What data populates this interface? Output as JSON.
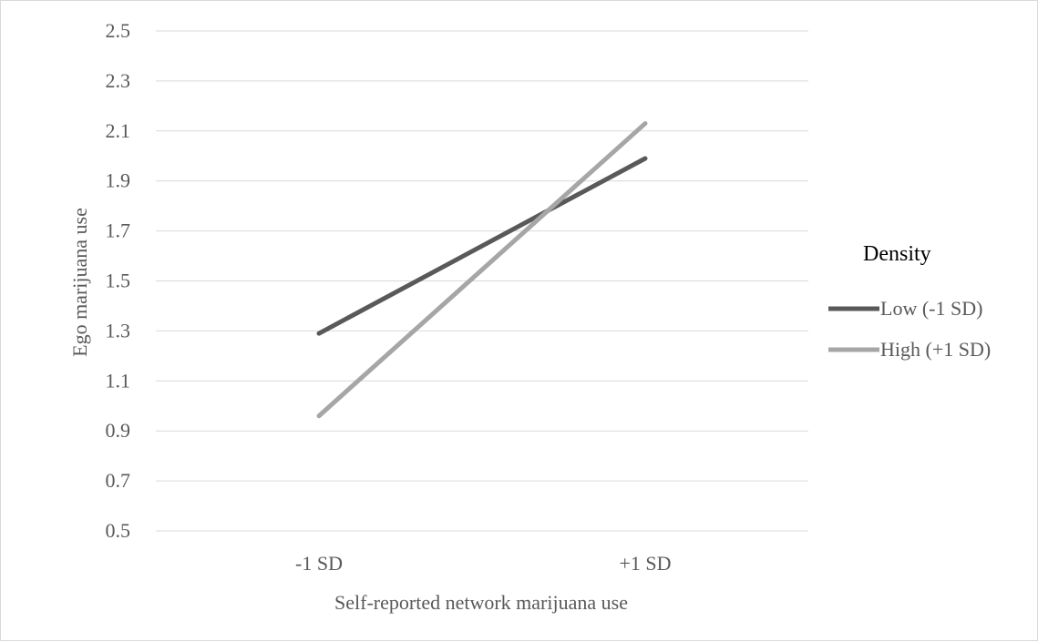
{
  "chart_data": {
    "type": "line",
    "title": "",
    "xlabel": "Self-reported network marijuana use",
    "ylabel": "Ego marijuana use",
    "categories": [
      "-1 SD",
      "+1 SD"
    ],
    "y_ticks": [
      "0.5",
      "0.7",
      "0.9",
      "1.1",
      "1.3",
      "1.5",
      "1.7",
      "1.9",
      "2.1",
      "2.3",
      "2.5"
    ],
    "ylim": [
      0.5,
      2.5
    ],
    "grid": "horizontal",
    "legend": {
      "title": "Density",
      "position": "right"
    },
    "series": [
      {
        "name": "Low (-1 SD)",
        "values": [
          1.29,
          1.99
        ],
        "color": "#595959"
      },
      {
        "name": "High (+1 SD)",
        "values": [
          0.96,
          2.13
        ],
        "color": "#a6a6a6"
      }
    ]
  }
}
